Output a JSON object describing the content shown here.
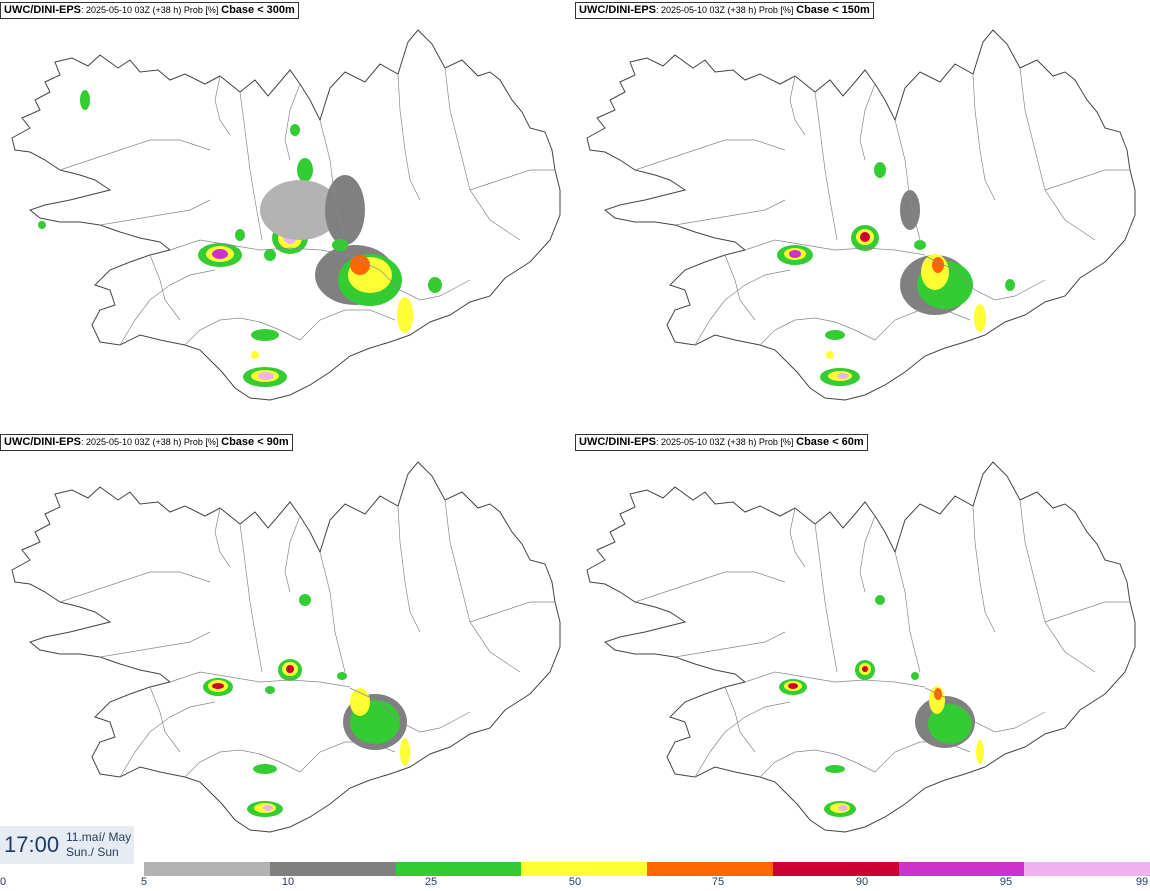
{
  "panels": [
    {
      "model": "UWC/DINI-EPS",
      "meta": ": 2025-05-10 03Z (+38 h) Prob [%]",
      "threshold": "Cbase < 300m"
    },
    {
      "model": "UWC/DINI-EPS",
      "meta": ": 2025-05-10 03Z (+38 h) Prob [%]",
      "threshold": "Cbase < 150m"
    },
    {
      "model": "UWC/DINI-EPS",
      "meta": ": 2025-05-10 03Z (+38 h) Prob [%]",
      "threshold": "Cbase < 90m"
    },
    {
      "model": "UWC/DINI-EPS",
      "meta": ": 2025-05-10 03Z (+38 h) Prob [%]",
      "threshold": "Cbase < 60m"
    }
  ],
  "valid_time": {
    "time": "17:00",
    "date_line1": "11.maí/ May",
    "date_line2": "Sun./ Sun"
  },
  "legend": {
    "colors": [
      "#b3b3b3",
      "#808080",
      "#33cc33",
      "#ffff33",
      "#ff6600",
      "#cc0033",
      "#cc33cc",
      "#f0b3f0"
    ],
    "tick_labels": [
      "0",
      "5",
      "10",
      "25",
      "50",
      "75",
      "90",
      "95",
      "99"
    ]
  },
  "colors": {
    "outline": "#444444",
    "text": "#1f3a5f"
  }
}
